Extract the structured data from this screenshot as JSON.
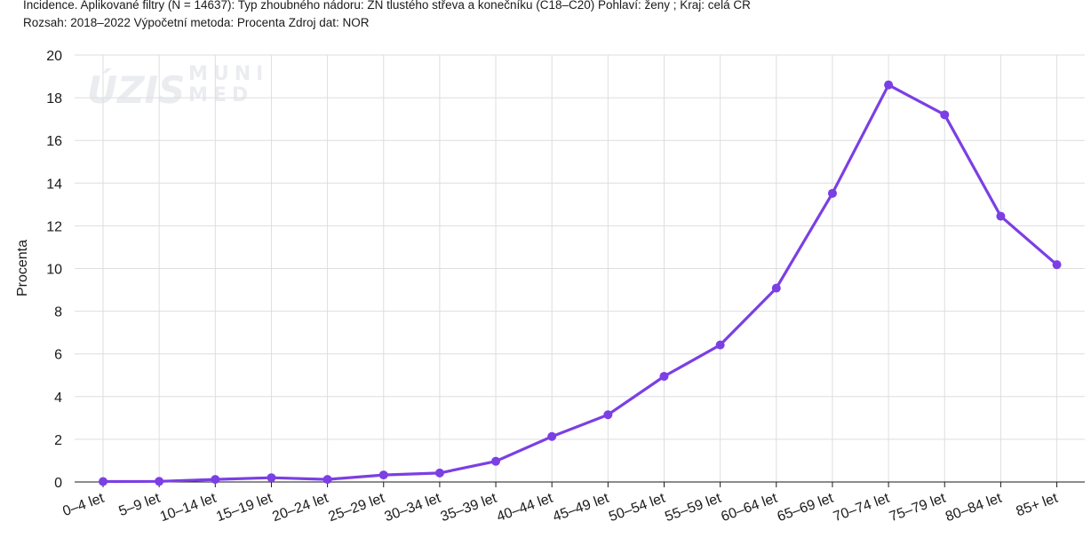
{
  "header": {
    "line1": "Incidence. Aplikované filtry (N = 14637): Typ zhoubného nádoru: ZN tlustého střeva a konečníku (C18–C20) Pohlaví: ženy ; Kraj: celá ČR",
    "line2": "Rozsah: 2018–2022 Výpočetní metoda: Procenta Zdroj dat: NOR"
  },
  "watermark": {
    "logo1": "ÚZIS",
    "logo2_line1": "MUNI",
    "logo2_line2": "MED"
  },
  "colors": {
    "series": "#7b3fe4",
    "grid": "#dedede",
    "text": "#1a1a1a"
  },
  "chart_data": {
    "type": "line",
    "title": "",
    "xlabel": "",
    "ylabel": "Procenta",
    "ylim": [
      0,
      20
    ],
    "yticks": [
      0,
      2,
      4,
      6,
      8,
      10,
      12,
      14,
      16,
      18,
      20
    ],
    "grid": true,
    "categories": [
      "0–4 let",
      "5–9 let",
      "10–14 let",
      "15–19 let",
      "20–24 let",
      "25–29 let",
      "30–34 let",
      "35–39 let",
      "40–44 let",
      "45–49 let",
      "50–54 let",
      "55–59 let",
      "60–64 let",
      "65–69 let",
      "70–74 let",
      "75–79 let",
      "80–84 let",
      "85+ let"
    ],
    "series": [
      {
        "values": [
          0.02,
          0.03,
          0.12,
          0.2,
          0.12,
          0.33,
          0.42,
          0.97,
          2.13,
          3.15,
          4.95,
          6.42,
          9.08,
          13.52,
          18.6,
          17.2,
          12.45,
          10.18
        ]
      }
    ]
  }
}
